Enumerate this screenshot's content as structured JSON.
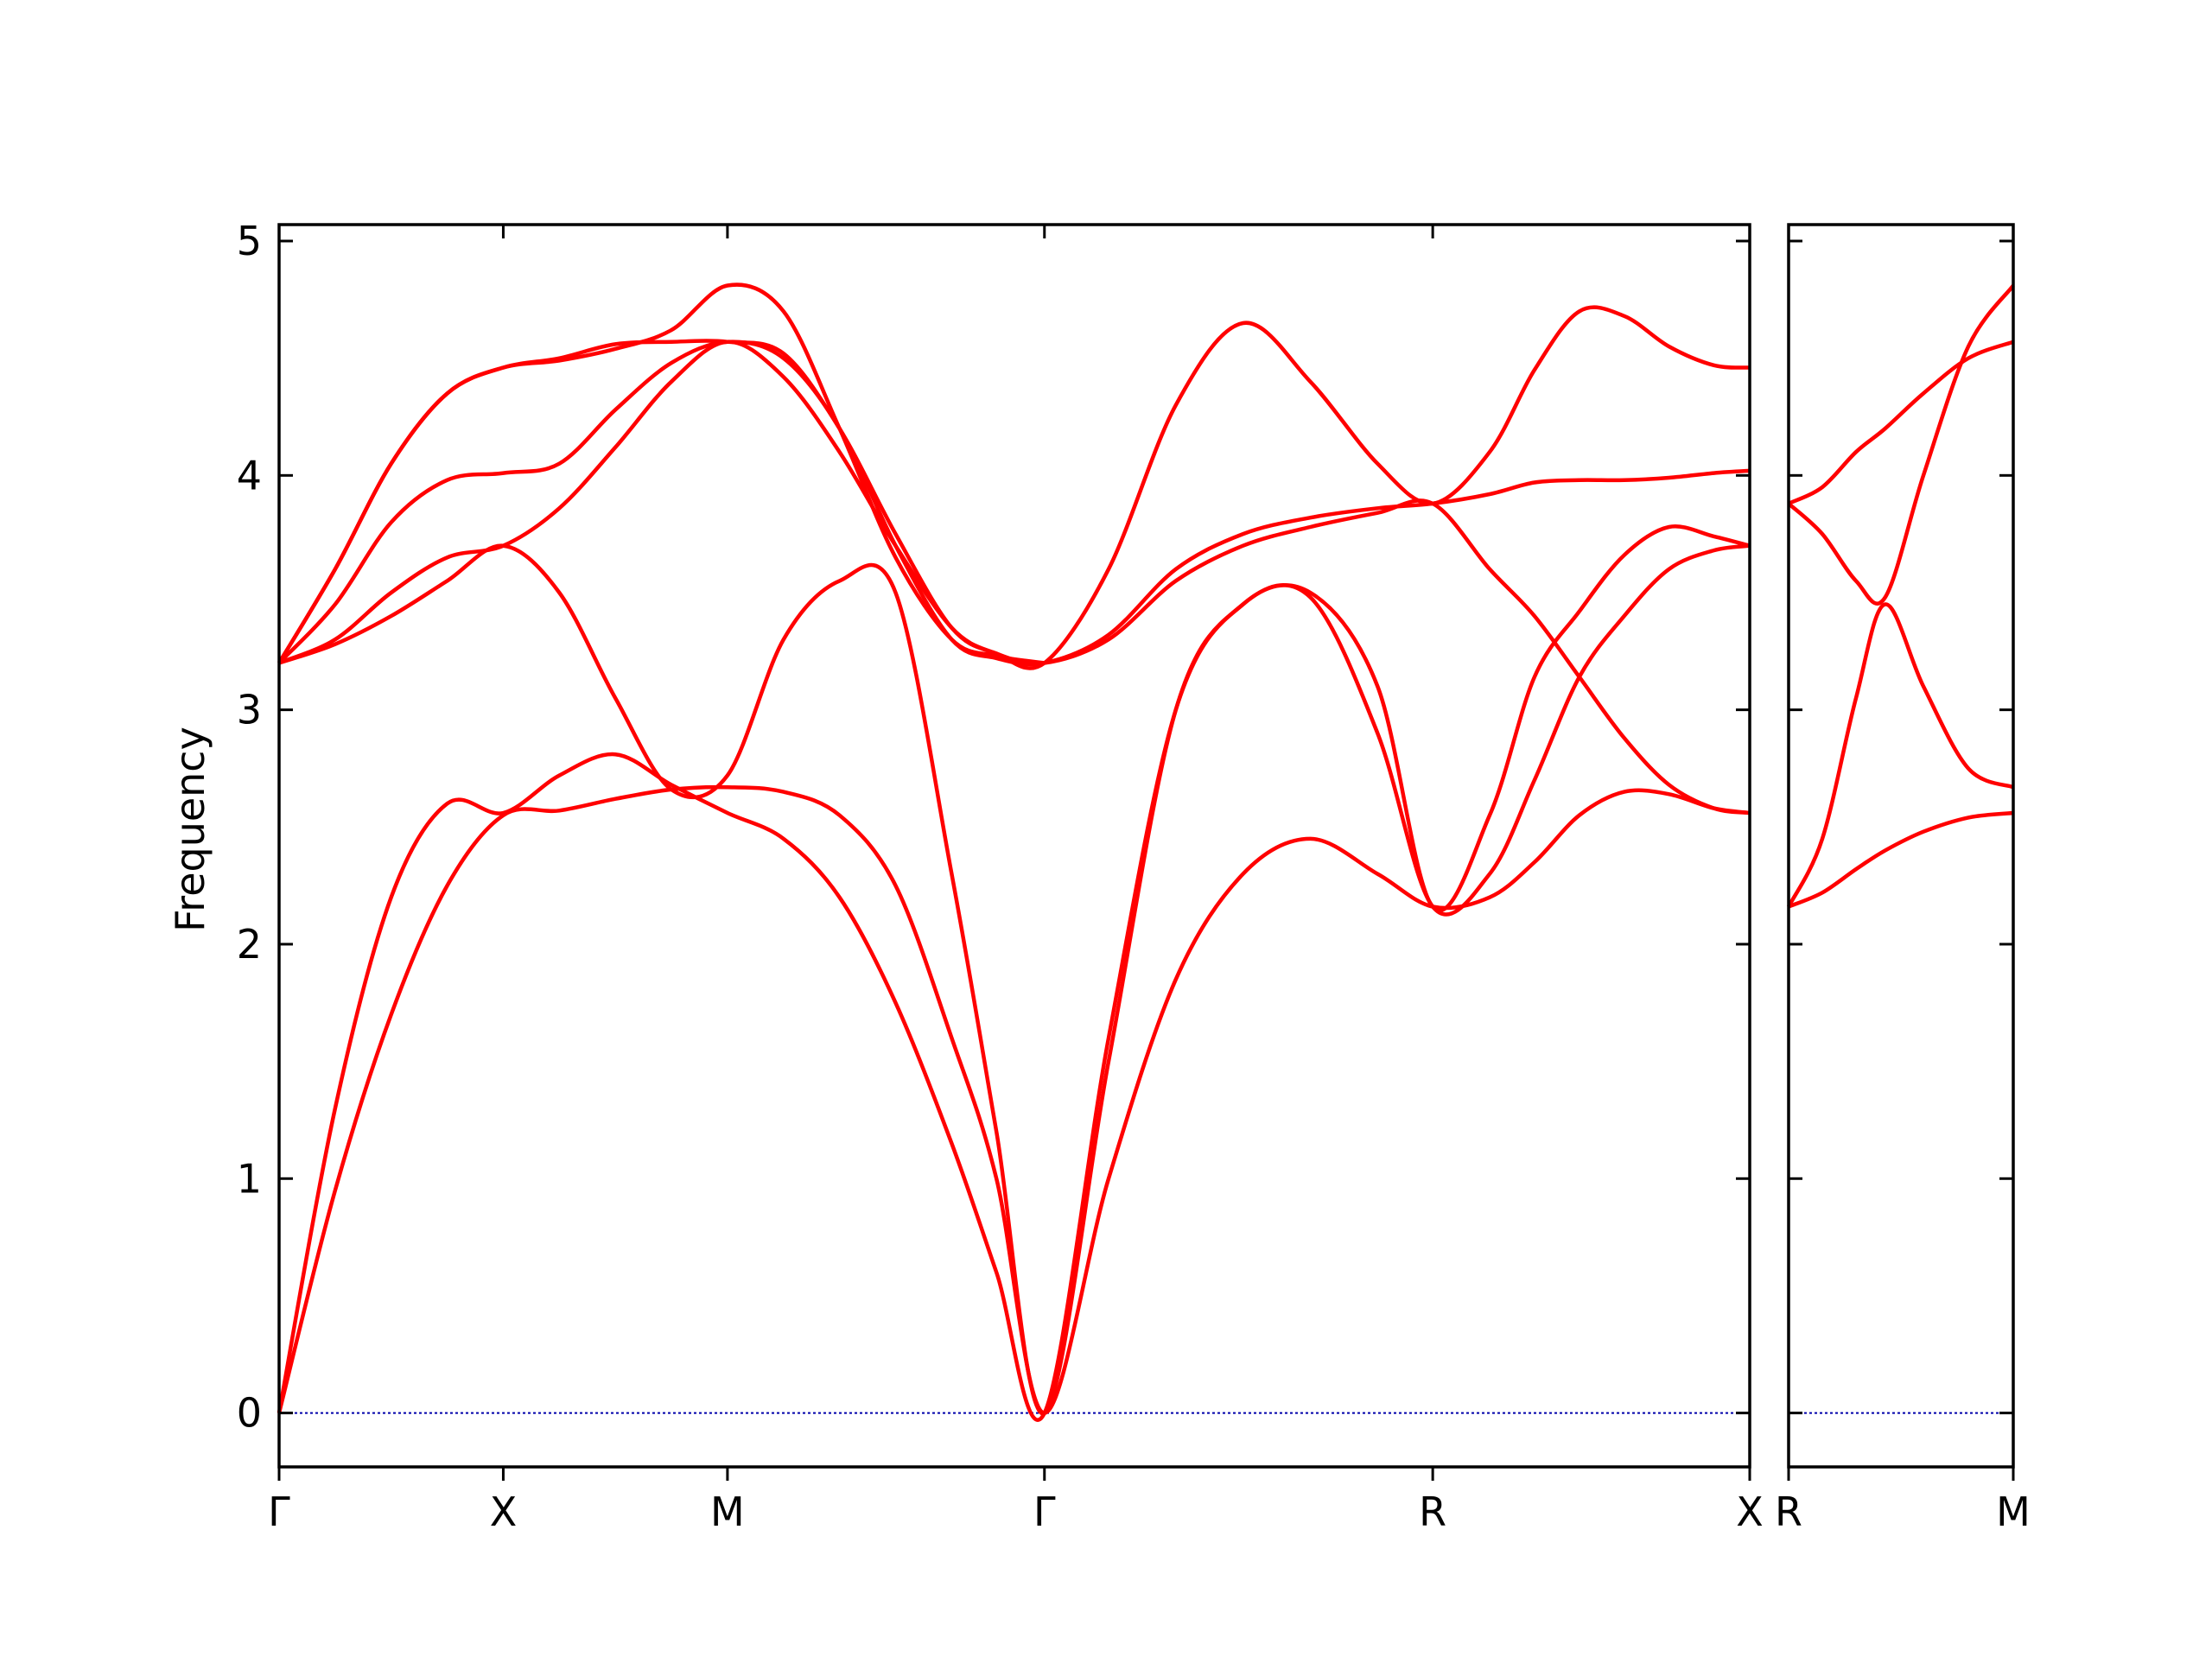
{
  "chart_data": {
    "type": "line",
    "ylabel": "Frequency",
    "ylim": [
      -0.23,
      5.07
    ],
    "yticks": [
      "0",
      "1",
      "2",
      "3",
      "4",
      "5"
    ],
    "band_color": "#ff0000",
    "zero_line_color": "#0000aa",
    "grid": false,
    "panels": [
      {
        "xticks": [
          {
            "label": "Γ",
            "x": 0
          },
          {
            "label": "X",
            "x": 1
          },
          {
            "label": "M",
            "x": 2
          },
          {
            "label": "Γ",
            "x": 3.414
          },
          {
            "label": "R",
            "x": 5.146
          },
          {
            "label": "X",
            "x": 6.56
          }
        ],
        "xlim": [
          0,
          6.56
        ],
        "bands": [
          {
            "x": [
              0,
              0.25,
              0.5,
              0.75,
              1,
              1.25,
              1.5,
              1.75,
              2,
              2.25,
              2.5,
              2.75,
              3,
              3.2,
              3.414,
              3.7,
              4.0,
              4.3,
              4.6,
              4.9,
              5.146,
              5.4,
              5.6,
              5.8,
              6.0,
              6.2,
              6.4,
              6.56
            ],
            "y": [
              0,
              0.95,
              1.7,
              2.25,
              2.55,
              2.57,
              2.62,
              2.66,
              2.67,
              2.65,
              2.55,
              2.25,
              1.6,
              1.0,
              0,
              1.0,
              1.85,
              2.3,
              2.45,
              2.3,
              2.16,
              2.2,
              2.35,
              2.55,
              2.65,
              2.64,
              2.58,
              2.56
            ]
          },
          {
            "x": [
              0,
              0.25,
              0.5,
              0.75,
              1,
              1.25,
              1.5,
              1.75,
              2,
              2.25,
              2.5,
              2.75,
              3,
              3.2,
              3.414,
              3.7,
              4.0,
              4.3,
              4.6,
              4.9,
              5.146,
              5.4,
              5.6,
              5.8,
              6.0,
              6.2,
              6.4,
              6.56
            ],
            "y": [
              0,
              1.3,
              2.2,
              2.6,
              2.56,
              2.72,
              2.81,
              2.68,
              2.56,
              2.45,
              2.2,
              1.75,
              1.15,
              0.6,
              0,
              1.6,
              3.0,
              3.45,
              3.48,
              2.9,
              2.16,
              2.3,
              2.7,
              3.14,
              3.4,
              3.6,
              3.68,
              3.7
            ]
          },
          {
            "x": [
              0,
              0.25,
              0.5,
              0.75,
              1,
              1.25,
              1.5,
              1.75,
              2,
              2.25,
              2.5,
              2.75,
              3,
              3.2,
              3.414,
              3.7,
              4.0,
              4.3,
              4.6,
              4.9,
              5.146,
              5.4,
              5.6,
              5.8,
              6.0,
              6.2,
              6.4,
              6.56
            ],
            "y": [
              3.2,
              3.28,
              3.4,
              3.55,
              3.7,
              3.5,
              3.05,
              2.66,
              2.72,
              3.3,
              3.55,
              3.5,
              2.3,
              1.2,
              0,
              1.5,
              3.0,
              3.45,
              3.5,
              3.1,
              2.16,
              2.55,
              3.14,
              3.42,
              3.66,
              3.78,
              3.74,
              3.7
            ]
          },
          {
            "x": [
              0,
              0.25,
              0.5,
              0.75,
              1,
              1.25,
              1.5,
              1.75,
              2,
              2.25,
              2.5,
              2.75,
              3,
              3.2,
              3.414,
              3.7,
              4.0,
              4.3,
              4.6,
              4.9,
              5.146,
              5.4,
              5.6,
              5.8,
              6.0,
              6.2,
              6.4,
              6.56
            ],
            "y": [
              3.2,
              3.3,
              3.5,
              3.65,
              3.7,
              3.86,
              4.12,
              4.4,
              4.57,
              4.42,
              4.1,
              3.7,
              3.35,
              3.24,
              3.2,
              3.3,
              3.55,
              3.7,
              3.78,
              3.84,
              3.88,
              3.6,
              3.4,
              3.14,
              2.88,
              2.68,
              2.58,
              2.56
            ]
          },
          {
            "x": [
              0,
              0.25,
              0.5,
              0.75,
              1,
              1.25,
              1.5,
              1.75,
              2,
              2.25,
              2.5,
              2.75,
              3,
              3.2,
              3.414,
              3.7,
              4.0,
              4.3,
              4.6,
              4.9,
              5.146,
              5.4,
              5.6,
              5.8,
              6.0,
              6.2,
              6.4,
              6.56
            ],
            "y": [
              3.2,
              3.45,
              3.8,
              3.98,
              4.01,
              4.05,
              4.28,
              4.48,
              4.57,
              4.5,
              4.2,
              3.7,
              3.3,
              3.22,
              3.2,
              3.32,
              3.6,
              3.75,
              3.82,
              3.86,
              3.88,
              3.92,
              3.97,
              3.98,
              3.98,
              3.99,
              4.01,
              4.02
            ]
          },
          {
            "x": [
              0,
              0.25,
              0.5,
              0.75,
              1,
              1.25,
              1.5,
              1.75,
              2,
              2.25,
              2.5,
              2.75,
              3,
              3.2,
              3.414,
              3.7,
              4.0,
              4.3,
              4.6,
              4.9,
              5.146,
              5.4,
              5.6,
              5.8,
              6.0,
              6.2,
              6.4,
              6.56
            ],
            "y": [
              3.2,
              3.6,
              4.05,
              4.35,
              4.46,
              4.5,
              4.56,
              4.57,
              4.57,
              4.52,
              4.2,
              3.75,
              3.35,
              3.24,
              3.2,
              3.6,
              4.3,
              4.65,
              4.4,
              4.05,
              3.88,
              4.1,
              4.45,
              4.7,
              4.68,
              4.55,
              4.47,
              4.46
            ]
          },
          {
            "x": [
              0,
              0.25,
              0.5,
              0.75,
              1,
              1.25,
              1.5,
              1.75,
              2,
              2.25,
              2.5,
              2.75,
              3,
              3.2,
              3.414
            ],
            "y": [
              3.2,
              3.6,
              4.05,
              4.35,
              4.46,
              4.49,
              4.54,
              4.62,
              4.81,
              4.7,
              4.2,
              3.65,
              3.3,
              3.23,
              3.2
            ]
          }
        ]
      },
      {
        "xticks": [
          {
            "label": "R",
            "x": 0
          },
          {
            "label": "M",
            "x": 1
          }
        ],
        "xlim": [
          0,
          1
        ],
        "bands": [
          {
            "x": [
              0,
              0.15,
              0.3,
              0.43,
              0.6,
              0.8,
              1
            ],
            "y": [
              2.16,
              2.22,
              2.32,
              2.4,
              2.48,
              2.54,
              2.56
            ]
          },
          {
            "x": [
              0,
              0.15,
              0.3,
              0.43,
              0.6,
              0.8,
              1
            ],
            "y": [
              2.16,
              2.45,
              3.05,
              3.45,
              3.1,
              2.75,
              2.67
            ]
          },
          {
            "x": [
              0,
              0.15,
              0.3,
              0.43,
              0.6,
              0.8,
              1
            ],
            "y": [
              3.88,
              3.75,
              3.55,
              3.48,
              4.0,
              4.55,
              4.81
            ]
          },
          {
            "x": [
              0,
              0.15,
              0.3,
              0.43,
              0.6,
              0.8,
              1
            ],
            "y": [
              3.88,
              3.95,
              4.1,
              4.2,
              4.35,
              4.5,
              4.57
            ]
          }
        ]
      }
    ]
  }
}
